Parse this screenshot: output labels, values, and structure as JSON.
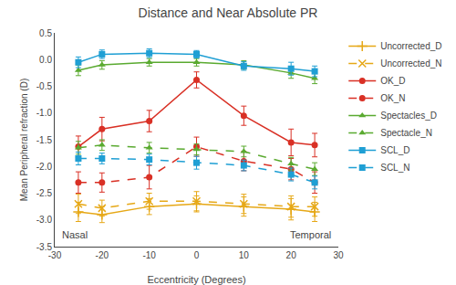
{
  "chart_data": {
    "type": "line",
    "title": "Distance and Near Absolute PR",
    "x_label": "Eccentricity (Degrees)",
    "y_label": "Mean Peripheral refraction (D)",
    "x": [
      -25,
      -20,
      -10,
      0,
      10,
      20,
      25
    ],
    "xlim": [
      -30,
      30
    ],
    "ylim": [
      -3.5,
      0.5
    ],
    "xticks": [
      -30,
      -20,
      -10,
      0,
      10,
      20,
      30
    ],
    "yticks": [
      0.5,
      {
        "value": 0,
        "label": "0.0"
      },
      -0.5,
      {
        "value": -1,
        "label": "-1.0"
      },
      -1.5,
      {
        "value": -2,
        "label": "-2.0"
      },
      -2.5,
      {
        "value": -3,
        "label": "-3.0"
      },
      -3.5
    ],
    "annotations": [
      "Nasal",
      "Temporal"
    ],
    "grid": false,
    "legend": "upper right",
    "series": [
      {
        "name": "Uncorrected_D",
        "color": "#e6a817",
        "line_style": "solid",
        "marker": "plus",
        "values": [
          -2.85,
          -2.9,
          -2.75,
          -2.7,
          -2.75,
          -2.8,
          -2.85
        ],
        "yerr": [
          0.18,
          0.15,
          0.15,
          0.15,
          0.18,
          0.2,
          0.18
        ]
      },
      {
        "name": "Uncorrected_N",
        "color": "#e6a817",
        "line_style": "dashed",
        "marker": "x",
        "values": [
          -2.7,
          -2.78,
          -2.65,
          -2.65,
          -2.7,
          -2.75,
          -2.75
        ],
        "yerr": [
          0.18,
          0.15,
          0.15,
          0.18,
          0.18,
          0.2,
          0.18
        ]
      },
      {
        "name": "OK_D",
        "color": "#d93025",
        "line_style": "solid",
        "marker": "circle",
        "values": [
          -1.63,
          -1.3,
          -1.15,
          -0.38,
          -1.05,
          -1.55,
          -1.6
        ],
        "yerr": [
          0.2,
          0.22,
          0.2,
          0.15,
          0.18,
          0.25,
          0.22
        ]
      },
      {
        "name": "OK_N",
        "color": "#d93025",
        "line_style": "dashed",
        "marker": "circle",
        "values": [
          -2.3,
          -2.3,
          -2.2,
          -1.63,
          -1.9,
          -2.05,
          -2.3
        ],
        "yerr": [
          0.2,
          0.18,
          0.22,
          0.18,
          0.18,
          0.2,
          0.2
        ]
      },
      {
        "name": "Spectacles_D",
        "color": "#5aaa30",
        "line_style": "solid",
        "marker": "triangle-up",
        "values": [
          -0.2,
          -0.1,
          -0.05,
          -0.05,
          -0.1,
          -0.25,
          -0.35
        ],
        "yerr": [
          0.1,
          0.08,
          0.07,
          0.07,
          0.08,
          0.1,
          0.1
        ]
      },
      {
        "name": "Spectacle_N",
        "color": "#5aaa30",
        "line_style": "dashed",
        "marker": "triangle-up",
        "values": [
          -1.65,
          -1.6,
          -1.65,
          -1.68,
          -1.72,
          -1.95,
          -2.05
        ],
        "yerr": [
          0.12,
          0.1,
          0.1,
          0.1,
          0.1,
          0.12,
          0.12
        ]
      },
      {
        "name": "SCL_D",
        "color": "#1f9fd4",
        "line_style": "solid",
        "marker": "square",
        "values": [
          -0.05,
          0.1,
          0.12,
          0.1,
          -0.12,
          -0.17,
          -0.22
        ],
        "yerr": [
          0.1,
          0.08,
          0.08,
          0.07,
          0.08,
          0.12,
          0.1
        ]
      },
      {
        "name": "SCL_N",
        "color": "#1f9fd4",
        "line_style": "dashed",
        "marker": "square",
        "values": [
          -1.85,
          -1.85,
          -1.87,
          -1.93,
          -1.98,
          -2.15,
          -2.3
        ],
        "yerr": [
          0.12,
          0.1,
          0.1,
          0.12,
          0.1,
          0.12,
          0.12
        ]
      }
    ]
  }
}
